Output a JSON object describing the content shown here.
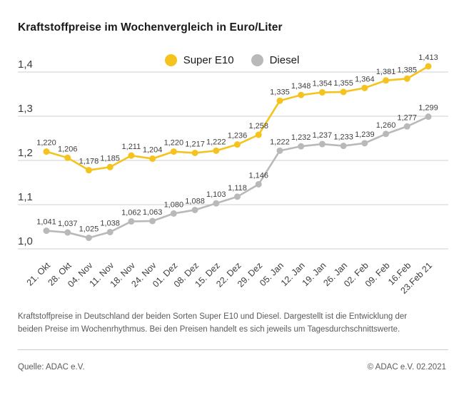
{
  "title": "Kraftstoffpreise im Wochenvergleich in Euro/Liter",
  "legend": [
    {
      "label": "Super E10",
      "color": "#F5C31E"
    },
    {
      "label": "Diesel",
      "color": "#B9B9B9"
    }
  ],
  "chart_data": {
    "type": "line",
    "title": "Kraftstoffpreise im Wochenvergleich in Euro/Liter",
    "xlabel": "",
    "ylabel": "Euro/Liter",
    "ylim": [
      1.0,
      1.4
    ],
    "grid": "horizontal",
    "legend_position": "top-center",
    "value_labels": true,
    "decimal_separator": ",",
    "y_ticks": [
      1.0,
      1.1,
      1.2,
      1.3,
      1.4
    ],
    "y_tick_labels": [
      "1,0",
      "1,1",
      "1,2",
      "1,3",
      "1,4"
    ],
    "categories": [
      "21. Okt",
      "28. Okt",
      "04. Nov",
      "11. Nov",
      "18. Nov",
      "24. Nov",
      "01. Dez",
      "08. Dez",
      "15. Dez",
      "22. Dez",
      "29. Dez",
      "05. Jan",
      "12. Jan",
      "19. Jan",
      "26. Jan",
      "02. Feb",
      "09. Feb",
      "16.Feb",
      "23.Feb 21"
    ],
    "series": [
      {
        "name": "Super E10",
        "color": "#F5C31E",
        "values": [
          1.22,
          1.206,
          1.178,
          1.185,
          1.211,
          1.204,
          1.22,
          1.217,
          1.222,
          1.236,
          1.258,
          1.335,
          1.348,
          1.354,
          1.355,
          1.364,
          1.381,
          1.385,
          1.413
        ]
      },
      {
        "name": "Diesel",
        "color": "#B9B9B9",
        "values": [
          1.041,
          1.037,
          1.025,
          1.038,
          1.062,
          1.063,
          1.08,
          1.088,
          1.103,
          1.118,
          1.146,
          1.222,
          1.232,
          1.237,
          1.233,
          1.239,
          1.26,
          1.277,
          1.299
        ]
      }
    ],
    "colors": {
      "grid": "#cfcfcf",
      "tick_text": "#3d3d3d",
      "value_label_text": "#3f3f3f"
    }
  },
  "description": "Kraftstoffpreise in Deutschland der beiden Sorten Super E10 und Diesel. Dargestellt ist die Entwicklung der beiden Preise im Wochenrhythmus. Bei den Preisen handelt es sich jeweils um Tagesdurchschnittswerte.",
  "source": "Quelle: ADAC e.V.",
  "copyright": "© ADAC e.V. 02.2021"
}
